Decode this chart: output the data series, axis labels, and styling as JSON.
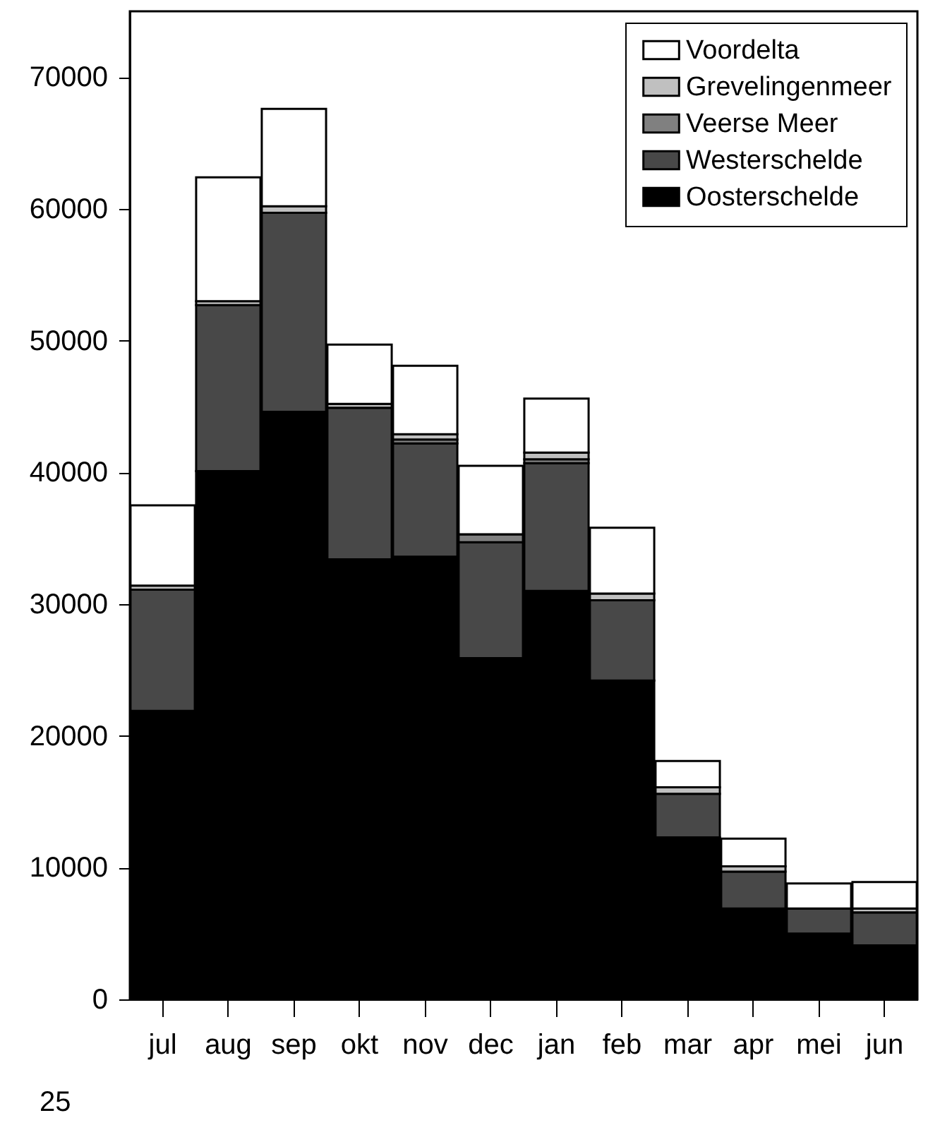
{
  "chart_data": {
    "type": "bar",
    "stacked": true,
    "categories": [
      "jul",
      "aug",
      "sep",
      "okt",
      "nov",
      "dec",
      "jan",
      "feb",
      "mar",
      "apr",
      "mei",
      "jun"
    ],
    "series": [
      {
        "name": "Oosterschelde",
        "color": "#000000",
        "values": [
          21900,
          40100,
          44600,
          33400,
          33600,
          25900,
          31000,
          24200,
          12300,
          6900,
          5000,
          4100
        ]
      },
      {
        "name": "Westerschelde",
        "color": "#484848",
        "values": [
          9200,
          12600,
          15100,
          11500,
          8600,
          8800,
          9700,
          6100,
          3300,
          2800,
          1900,
          2500
        ]
      },
      {
        "name": "Veerse Meer",
        "color": "#808080",
        "values": [
          0,
          0,
          0,
          0,
          300,
          600,
          300,
          null,
          null,
          null,
          null,
          0
        ]
      },
      {
        "name": "Grevelingenmeer",
        "color": "#c0c0c0",
        "values": [
          300,
          300,
          500,
          300,
          400,
          0,
          500,
          500,
          500,
          400,
          0,
          300
        ]
      },
      {
        "name": "Voordelta",
        "color": "#ffffff",
        "values": [
          6100,
          9400,
          7400,
          4500,
          5200,
          5200,
          4100,
          5000,
          2000,
          2100,
          1900,
          2000
        ]
      }
    ],
    "ylim": [
      0,
      75000
    ],
    "yticks": [
      0,
      10000,
      20000,
      30000,
      40000,
      50000,
      60000,
      70000
    ],
    "grid": false,
    "legend": "top right",
    "annotations": [
      "25"
    ]
  }
}
